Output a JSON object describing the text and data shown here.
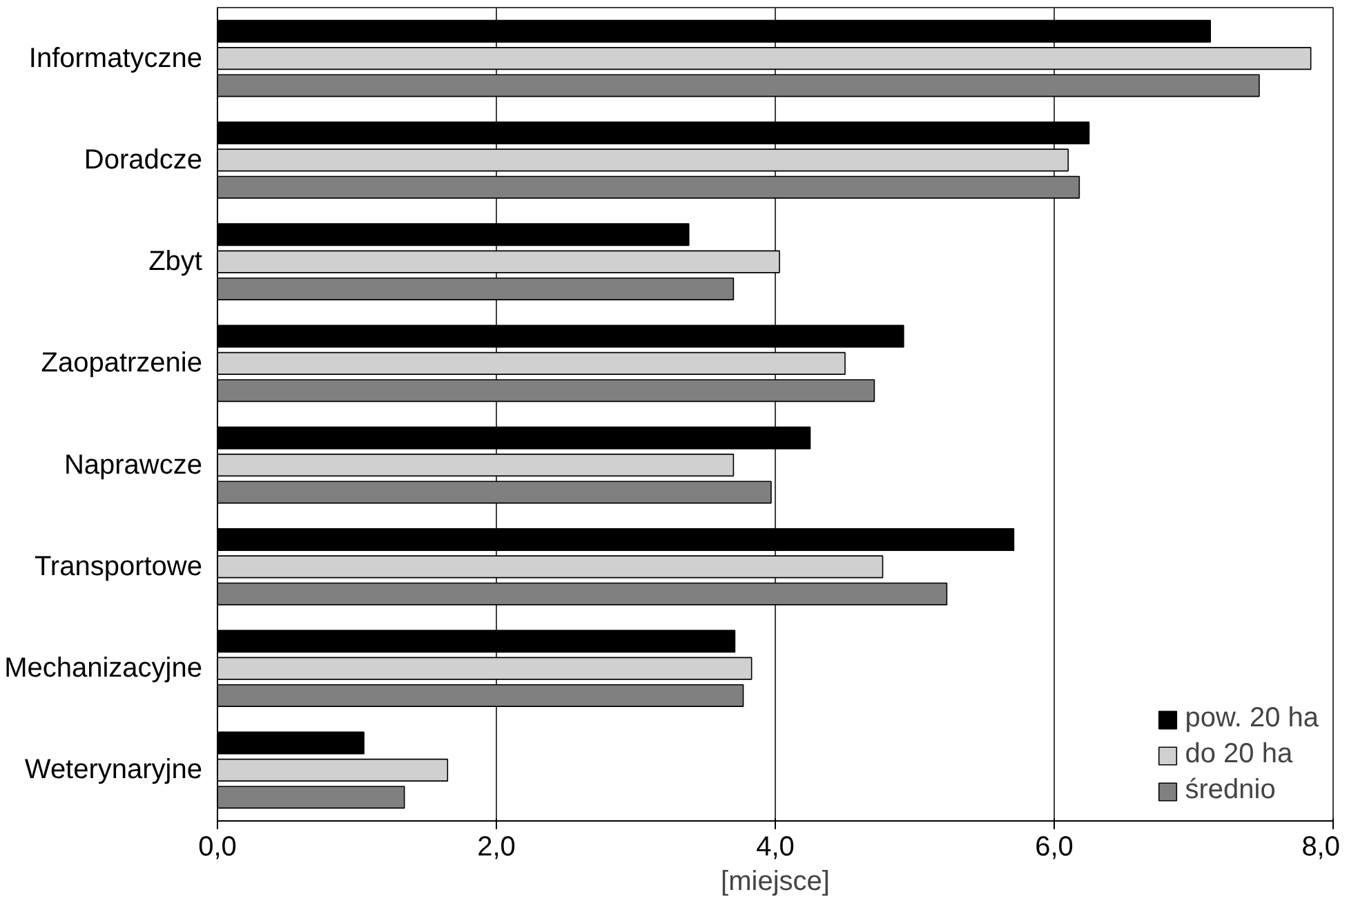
{
  "chart_data": {
    "type": "bar",
    "orientation": "horizontal",
    "xlabel": "[miejsce]",
    "categories": [
      "Informatyczne",
      "Doradcze",
      "Zbyt",
      "Zaopatrzenie",
      "Naprawcze",
      "Transportowe",
      "Mechanizacyjne",
      "Weterynaryjne"
    ],
    "series": [
      {
        "name": "pow. 20 ha",
        "color": "#000000",
        "values": [
          7.12,
          6.25,
          3.38,
          4.92,
          4.25,
          5.71,
          3.71,
          1.05
        ]
      },
      {
        "name": "do 20 ha",
        "color": "#d0d0d0",
        "values": [
          7.84,
          6.1,
          4.03,
          4.5,
          3.7,
          4.77,
          3.83,
          1.65
        ]
      },
      {
        "name": "średnio",
        "color": "#808080",
        "values": [
          7.47,
          6.18,
          3.7,
          4.71,
          3.97,
          5.23,
          3.77,
          1.34
        ]
      }
    ],
    "xlim": [
      0,
      8
    ],
    "xticks": [
      {
        "value": 0,
        "label": "0,0"
      },
      {
        "value": 2,
        "label": "2,0"
      },
      {
        "value": 4,
        "label": "4,0"
      },
      {
        "value": 6,
        "label": "6,0"
      },
      {
        "value": 8,
        "label": "8,0"
      }
    ],
    "grid": "x",
    "legend": "bottom right"
  }
}
